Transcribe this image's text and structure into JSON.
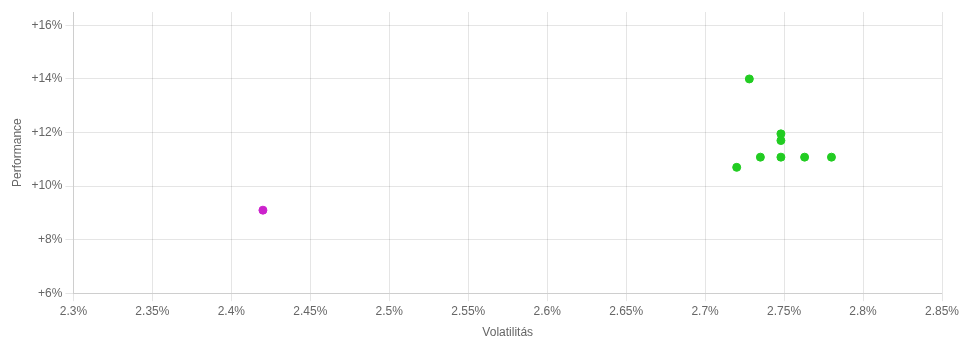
{
  "chart_data": {
    "type": "scatter",
    "xlabel": "Volatilitás",
    "ylabel": "Performance",
    "series": [
      {
        "color": "#22cc22",
        "x": [
          0.02728,
          0.02748,
          0.02748,
          0.02735,
          0.02748,
          0.02763,
          0.0272,
          0.0278
        ],
        "values": [
          0.14,
          0.1195,
          0.117,
          0.1108,
          0.1108,
          0.1108,
          0.107,
          0.1108
        ]
      },
      {
        "color": "#cc22cc",
        "x": [
          0.0242
        ],
        "values": [
          0.091
        ]
      }
    ],
    "xlim": [
      0.023,
      0.0285
    ],
    "ylim": [
      0.06,
      0.165
    ],
    "xticks": [
      {
        "value": 0.023,
        "label": "2.3%"
      },
      {
        "value": 0.0235,
        "label": "2.35%"
      },
      {
        "value": 0.024,
        "label": "2.4%"
      },
      {
        "value": 0.0245,
        "label": "2.45%"
      },
      {
        "value": 0.025,
        "label": "2.5%"
      },
      {
        "value": 0.0255,
        "label": "2.55%"
      },
      {
        "value": 0.026,
        "label": "2.6%"
      },
      {
        "value": 0.0265,
        "label": "2.65%"
      },
      {
        "value": 0.027,
        "label": "2.7%"
      },
      {
        "value": 0.0275,
        "label": "2.75%"
      },
      {
        "value": 0.028,
        "label": "2.8%"
      },
      {
        "value": 0.0285,
        "label": "2.85%"
      }
    ],
    "yticks": [
      {
        "value": 0.06,
        "label": "+6%"
      },
      {
        "value": 0.08,
        "label": "+8%"
      },
      {
        "value": 0.1,
        "label": "+10%"
      },
      {
        "value": 0.12,
        "label": "+12%"
      },
      {
        "value": 0.14,
        "label": "+14%"
      },
      {
        "value": 0.16,
        "label": "+16%"
      }
    ],
    "grid": true
  }
}
